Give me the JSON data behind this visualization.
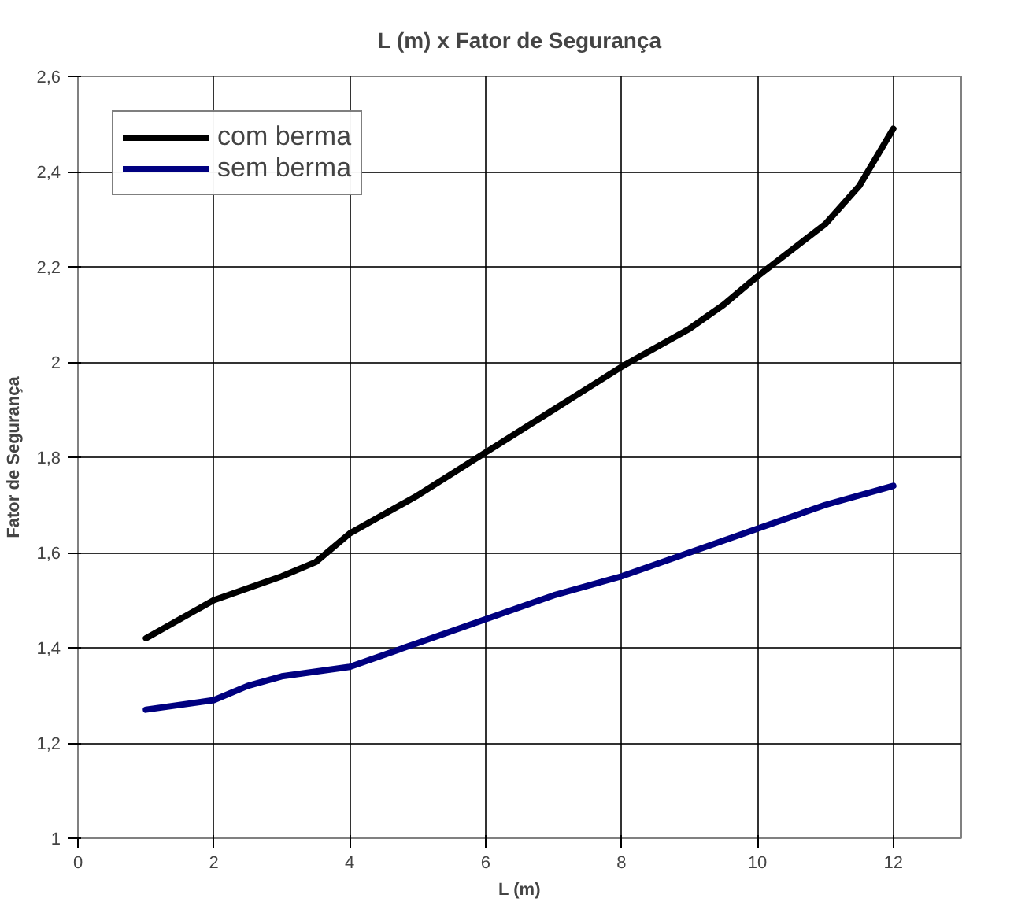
{
  "chart_data": {
    "type": "line",
    "title": "L (m) x Fator de Segurança",
    "xlabel": "L (m)",
    "ylabel": "Fator de Segurança",
    "xlim": [
      0,
      13
    ],
    "xticks": [
      0,
      2,
      4,
      6,
      8,
      10,
      12
    ],
    "ylim": [
      1,
      2.6
    ],
    "yticks": [
      {
        "value": 1,
        "label": "1"
      },
      {
        "value": 1.2,
        "label": "1,2"
      },
      {
        "value": 1.4,
        "label": "1,4"
      },
      {
        "value": 1.6,
        "label": "1,6"
      },
      {
        "value": 1.8,
        "label": "1,8"
      },
      {
        "value": 2,
        "label": "2"
      },
      {
        "value": 2.2,
        "label": "2,2"
      },
      {
        "value": 2.4,
        "label": "2,4"
      },
      {
        "value": 2.6,
        "label": "2,6"
      }
    ],
    "grid": true,
    "legend": "top left",
    "marker": "none",
    "line_style": "solid",
    "series": [
      {
        "name": "com berma",
        "color": "#000000",
        "x": [
          1,
          2,
          3,
          3.5,
          4,
          5,
          6,
          7,
          8,
          9,
          9.5,
          10,
          11,
          11.5,
          12
        ],
        "values": [
          1.42,
          1.5,
          1.55,
          1.58,
          1.64,
          1.72,
          1.81,
          1.9,
          1.99,
          2.07,
          2.12,
          2.18,
          2.29,
          2.37,
          2.49
        ]
      },
      {
        "name": "sem berma",
        "color": "#000080",
        "x": [
          1,
          2,
          2.5,
          3,
          3.5,
          4,
          5,
          6,
          7,
          8,
          9,
          10,
          11,
          12
        ],
        "values": [
          1.27,
          1.29,
          1.32,
          1.34,
          1.35,
          1.36,
          1.41,
          1.46,
          1.51,
          1.55,
          1.6,
          1.65,
          1.7,
          1.74
        ]
      }
    ]
  }
}
